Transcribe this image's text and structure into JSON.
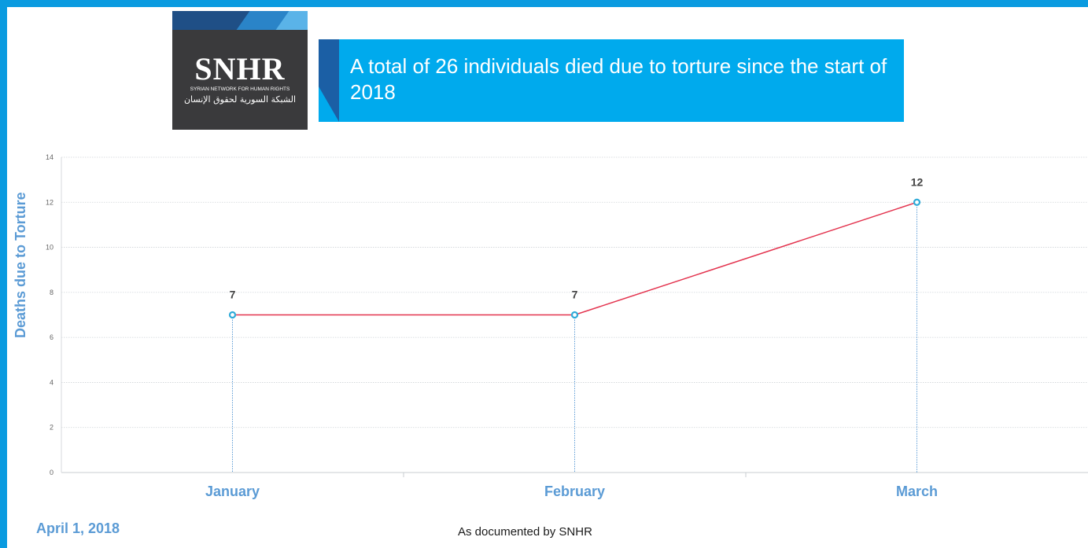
{
  "header": {
    "logo_text": "SNHR",
    "logo_subtitle": "SYRIAN NETWORK FOR HUMAN RIGHTS",
    "logo_arabic": "الشبكة السورية لحقوق الإنسان",
    "title": "A total of 26 individuals died due to torture since the start of 2018"
  },
  "footer": {
    "date": "April 1, 2018",
    "source": "As documented by SNHR"
  },
  "chart_data": {
    "type": "line",
    "title": "A total of 26 individuals died due to torture since the start of 2018",
    "xlabel": "",
    "ylabel": "Deaths due to Torture",
    "categories": [
      "January",
      "February",
      "March"
    ],
    "values": [
      7,
      7,
      12
    ],
    "data_labels": [
      "7",
      "7",
      "12"
    ],
    "ylim": [
      0,
      14
    ],
    "yticks": [
      "0",
      "2",
      "4",
      "6",
      "8",
      "10",
      "12",
      "14"
    ],
    "grid": true,
    "legend": "none",
    "line_color": "#e3334e",
    "marker_color": "#2eaad8",
    "axis_label_color": "#5b9bd5"
  }
}
